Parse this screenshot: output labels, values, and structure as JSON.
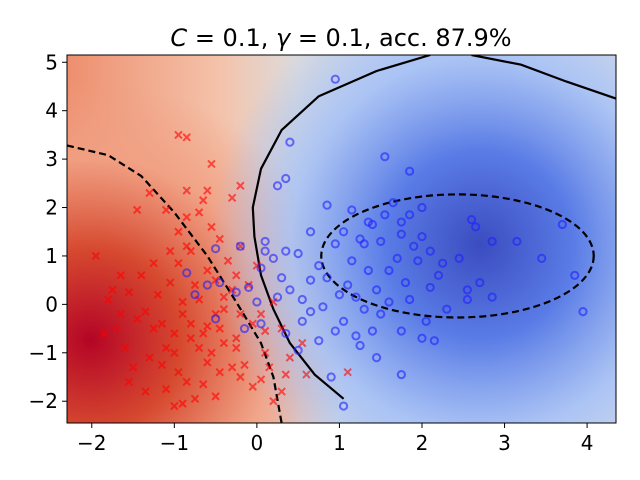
{
  "chart_data": {
    "type": "scatter",
    "title": "C = 0.1, γ = 0.1, acc. 87.9%",
    "title_parts": {
      "c_symbol": "C",
      "c_value": " = 0.1, ",
      "gamma_symbol": "γ",
      "rest": " = 0.1, acc. 87.9%"
    },
    "xlabel": "",
    "ylabel": "",
    "xlim": [
      -2.3,
      4.35
    ],
    "ylim": [
      -2.45,
      5.15
    ],
    "xticks": [
      -2,
      -1,
      0,
      1,
      2,
      3,
      4
    ],
    "yticks": [
      -2,
      -1,
      0,
      1,
      2,
      3,
      4,
      5
    ],
    "xtick_labels": [
      "−2",
      "−1",
      "0",
      "1",
      "2",
      "3",
      "4"
    ],
    "ytick_labels": [
      "−2",
      "−1",
      "0",
      "1",
      "2",
      "3",
      "4",
      "5"
    ],
    "grid": false,
    "legend": "none",
    "background": "decision function, coolwarm colormap (red = class x, blue = class o)",
    "colors": {
      "class_x": "#ff0000",
      "class_o": "#2020ff",
      "red_deep": "#b40426",
      "neutral": "#dddcdc",
      "blue_deep": "#3b4cc0",
      "boundary": "#000000"
    },
    "decision_boundary": {
      "style": "solid",
      "points": [
        [
          1.05,
          -1.95
        ],
        [
          0.7,
          -1.45
        ],
        [
          0.4,
          -0.8
        ],
        [
          0.2,
          -0.1
        ],
        [
          0.05,
          0.6
        ],
        [
          -0.03,
          1.4
        ],
        [
          -0.05,
          2.0
        ],
        [
          0.05,
          2.8
        ],
        [
          0.3,
          3.6
        ],
        [
          0.75,
          4.3
        ],
        [
          1.45,
          4.82
        ],
        [
          2.1,
          5.15
        ]
      ],
      "upper_right_points": [
        [
          2.6,
          5.15
        ],
        [
          3.2,
          4.95
        ],
        [
          3.75,
          4.6
        ],
        [
          4.35,
          4.25
        ]
      ]
    },
    "margin_contours": [
      {
        "style": "dashed",
        "points": [
          [
            -2.3,
            3.28
          ],
          [
            -1.8,
            3.08
          ],
          [
            -1.4,
            2.65
          ],
          [
            -1.0,
            1.9
          ],
          [
            -0.6,
            1.0
          ],
          [
            -0.25,
            0.05
          ],
          [
            0.05,
            -0.8
          ],
          [
            0.2,
            -1.5
          ],
          [
            0.3,
            -2.45
          ]
        ]
      },
      {
        "style": "dashed",
        "ellipse": {
          "cx": 2.43,
          "cy": 1.0,
          "rx": 1.65,
          "ry": 2.05
        }
      }
    ],
    "series": [
      {
        "name": "",
        "marker": "x",
        "color": "#ff0000",
        "points": [
          [
            0.3,
            -0.5
          ],
          [
            1.1,
            -1.4
          ],
          [
            -0.7,
            0.1
          ],
          [
            -0.65,
            -0.6
          ],
          [
            -0.55,
            -1.0
          ],
          [
            -0.5,
            -0.2
          ],
          [
            -0.45,
            -0.5
          ],
          [
            -0.8,
            -0.4
          ],
          [
            -0.9,
            -0.2
          ],
          [
            -1.0,
            -0.6
          ],
          [
            -1.1,
            -0.9
          ],
          [
            -1.25,
            -0.5
          ],
          [
            -1.35,
            -0.15
          ],
          [
            -1.45,
            -0.3
          ],
          [
            -1.6,
            -0.9
          ],
          [
            -1.7,
            -0.5
          ],
          [
            -1.55,
            0.25
          ],
          [
            -1.65,
            0.6
          ],
          [
            -1.95,
            1.0
          ],
          [
            -1.85,
            -0.6
          ],
          [
            -1.5,
            -1.3
          ],
          [
            -1.3,
            -1.1
          ],
          [
            -1.15,
            -1.25
          ],
          [
            -0.95,
            -1.4
          ],
          [
            -0.85,
            -1.6
          ],
          [
            -0.6,
            -1.2
          ],
          [
            -0.4,
            -0.8
          ],
          [
            -0.3,
            -1.3
          ],
          [
            -0.25,
            -0.9
          ],
          [
            -0.15,
            -1.25
          ],
          [
            -0.05,
            -1.7
          ],
          [
            0.1,
            -1.0
          ],
          [
            0.4,
            -1.1
          ],
          [
            0.55,
            -0.8
          ],
          [
            0.6,
            -1.45
          ],
          [
            0.3,
            -1.8
          ],
          [
            0.2,
            -2.0
          ],
          [
            0.05,
            -1.55
          ],
          [
            -0.2,
            -1.5
          ],
          [
            -0.5,
            -1.9
          ],
          [
            -0.65,
            -1.65
          ],
          [
            -0.75,
            -1.95
          ],
          [
            -0.9,
            -2.05
          ],
          [
            -1.1,
            -1.75
          ],
          [
            -1.0,
            -2.1
          ],
          [
            -1.15,
            -0.4
          ],
          [
            -1.2,
            0.2
          ],
          [
            -1.05,
            0.45
          ],
          [
            -0.95,
            0.85
          ],
          [
            -0.8,
            1.1
          ],
          [
            -0.6,
            0.7
          ],
          [
            -0.5,
            0.5
          ],
          [
            -0.35,
            0.9
          ],
          [
            -0.25,
            0.6
          ],
          [
            -0.1,
            0.4
          ],
          [
            0.0,
            0.8
          ],
          [
            -0.2,
            1.2
          ],
          [
            -0.45,
            1.35
          ],
          [
            -0.55,
            1.6
          ],
          [
            -0.7,
            1.9
          ],
          [
            -0.85,
            1.2
          ],
          [
            -0.95,
            1.5
          ],
          [
            -1.1,
            1.95
          ],
          [
            -0.85,
            2.35
          ],
          [
            -0.6,
            2.35
          ],
          [
            -0.55,
            2.9
          ],
          [
            -0.3,
            2.2
          ],
          [
            -0.2,
            2.45
          ],
          [
            -0.65,
            2.15
          ],
          [
            -0.85,
            1.8
          ],
          [
            -1.45,
            1.95
          ],
          [
            -1.3,
            2.3
          ],
          [
            -0.95,
            3.5
          ],
          [
            -0.85,
            3.45
          ],
          [
            -0.4,
            0.15
          ],
          [
            -0.2,
            -0.2
          ],
          [
            -0.05,
            -0.4
          ],
          [
            0.1,
            -0.55
          ],
          [
            0.2,
            0.05
          ],
          [
            -0.3,
            0.3
          ],
          [
            -0.75,
            0.4
          ],
          [
            -0.9,
            0.05
          ],
          [
            -0.7,
            -0.9
          ],
          [
            -0.45,
            -1.4
          ],
          [
            -0.25,
            -0.7
          ],
          [
            0.05,
            -0.2
          ],
          [
            0.15,
            -1.3
          ],
          [
            0.35,
            -1.45
          ],
          [
            -1.35,
            -1.8
          ],
          [
            -1.55,
            -1.6
          ],
          [
            -1.65,
            -0.2
          ],
          [
            -1.8,
            0.1
          ],
          [
            -1.75,
            0.3
          ],
          [
            -1.4,
            0.6
          ],
          [
            -1.25,
            0.85
          ],
          [
            -1.05,
            1.1
          ],
          [
            -0.4,
            -0.1
          ],
          [
            -0.6,
            -0.45
          ],
          [
            -0.8,
            -0.7
          ],
          [
            -1.0,
            -1.0
          ]
        ]
      },
      {
        "name": "",
        "marker": "o",
        "color": "#2020ff",
        "points": [
          [
            0.95,
            4.65
          ],
          [
            0.4,
            3.35
          ],
          [
            1.55,
            3.05
          ],
          [
            1.85,
            2.75
          ],
          [
            0.35,
            2.6
          ],
          [
            0.85,
            2.05
          ],
          [
            0.25,
            2.45
          ],
          [
            0.65,
            1.5
          ],
          [
            1.05,
            1.5
          ],
          [
            1.3,
            1.25
          ],
          [
            1.4,
            1.65
          ],
          [
            1.55,
            1.85
          ],
          [
            1.65,
            2.1
          ],
          [
            1.85,
            1.85
          ],
          [
            2.0,
            1.4
          ],
          [
            2.1,
            1.1
          ],
          [
            2.25,
            0.85
          ],
          [
            2.45,
            0.95
          ],
          [
            2.6,
            1.75
          ],
          [
            2.65,
            1.6
          ],
          [
            2.85,
            1.3
          ],
          [
            3.15,
            1.3
          ],
          [
            3.45,
            0.95
          ],
          [
            3.7,
            1.65
          ],
          [
            3.85,
            0.6
          ],
          [
            3.95,
            -0.15
          ],
          [
            2.7,
            0.45
          ],
          [
            2.55,
            0.3
          ],
          [
            2.85,
            0.15
          ],
          [
            2.55,
            0.1
          ],
          [
            2.3,
            -0.1
          ],
          [
            2.05,
            -0.35
          ],
          [
            2.0,
            -0.7
          ],
          [
            1.75,
            -0.55
          ],
          [
            1.5,
            -0.2
          ],
          [
            1.3,
            -0.1
          ],
          [
            1.2,
            0.15
          ],
          [
            1.05,
            -0.35
          ],
          [
            0.95,
            -0.55
          ],
          [
            1.0,
            0.2
          ],
          [
            0.85,
            0.55
          ],
          [
            0.75,
            -0.75
          ],
          [
            0.55,
            -0.35
          ],
          [
            0.65,
            -0.15
          ],
          [
            0.4,
            0.3
          ],
          [
            0.3,
            0.55
          ],
          [
            0.2,
            0.95
          ],
          [
            0.1,
            1.3
          ],
          [
            0.05,
            0.75
          ],
          [
            -0.1,
            0.35
          ],
          [
            -0.25,
            0.25
          ],
          [
            -0.45,
            0.45
          ],
          [
            -0.6,
            0.4
          ],
          [
            -0.75,
            0.2
          ],
          [
            -0.85,
            0.65
          ],
          [
            -0.5,
            1.15
          ],
          [
            -0.2,
            1.2
          ],
          [
            0.1,
            1.1
          ],
          [
            0.35,
            1.1
          ],
          [
            0.5,
            1.05
          ],
          [
            0.65,
            0.5
          ],
          [
            0.75,
            0.8
          ],
          [
            0.95,
            1.25
          ],
          [
            1.15,
            0.9
          ],
          [
            1.35,
            0.7
          ],
          [
            1.45,
            0.3
          ],
          [
            1.6,
            0.7
          ],
          [
            1.7,
            0.95
          ],
          [
            1.8,
            0.45
          ],
          [
            1.95,
            0.9
          ],
          [
            2.1,
            0.35
          ],
          [
            2.2,
            0.6
          ],
          [
            1.85,
            0.1
          ],
          [
            1.6,
            0.05
          ],
          [
            1.4,
            -0.55
          ],
          [
            1.2,
            -0.65
          ],
          [
            1.25,
            -0.85
          ],
          [
            1.45,
            -1.1
          ],
          [
            1.75,
            -1.45
          ],
          [
            2.15,
            -0.75
          ],
          [
            1.05,
            -2.1
          ],
          [
            0.9,
            -1.5
          ],
          [
            0.5,
            -0.95
          ],
          [
            0.35,
            -0.6
          ],
          [
            0.05,
            -0.4
          ],
          [
            -0.15,
            -0.5
          ],
          [
            -0.5,
            -0.3
          ],
          [
            0.0,
            0.05
          ],
          [
            0.25,
            0.15
          ],
          [
            0.55,
            0.1
          ],
          [
            0.8,
            -0.05
          ],
          [
            1.1,
            0.4
          ],
          [
            1.25,
            1.35
          ],
          [
            1.5,
            1.3
          ],
          [
            1.75,
            1.45
          ],
          [
            1.9,
            1.2
          ],
          [
            2.0,
            2.0
          ],
          [
            1.75,
            1.7
          ],
          [
            1.35,
            1.7
          ],
          [
            1.15,
            1.95
          ]
        ]
      }
    ]
  }
}
